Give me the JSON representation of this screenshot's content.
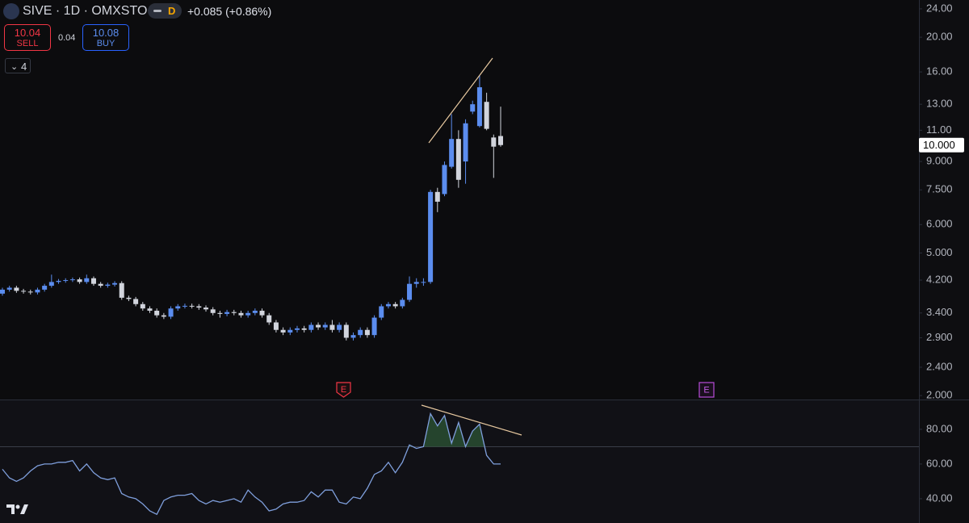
{
  "header": {
    "symbol": "SIVE · 1D · OMXSTO",
    "interval_badge": "D",
    "change": "+0.085 (+0.86%)",
    "sell": {
      "price": "10.04",
      "label": "SELL"
    },
    "spread": "0.04",
    "buy": {
      "price": "10.08",
      "label": "BUY"
    },
    "indicators_count": "4",
    "events": [
      "E",
      "E"
    ]
  },
  "chart_data": [
    {
      "type": "candlestick",
      "title": "SIVE · 1D · OMXSTO",
      "log_scale": true,
      "up_color": "#5b8def",
      "down_color": "#d1d4dc",
      "ylim": [
        1.95,
        25.4
      ],
      "yticks": [
        {
          "value": 24,
          "label": "24.00"
        },
        {
          "value": 20,
          "label": "20.00"
        },
        {
          "value": 16,
          "label": "16.00"
        },
        {
          "value": 13,
          "label": "13.00"
        },
        {
          "value": 11,
          "label": "11.00"
        },
        {
          "value": 9,
          "label": "9.000"
        },
        {
          "value": 7.5,
          "label": "7.500"
        },
        {
          "value": 6,
          "label": "6.000"
        },
        {
          "value": 5,
          "label": "5.000"
        },
        {
          "value": 4.2,
          "label": "4.200"
        },
        {
          "value": 3.4,
          "label": "3.400"
        },
        {
          "value": 2.9,
          "label": "2.900"
        },
        {
          "value": 2.4,
          "label": "2.400"
        },
        {
          "value": 2,
          "label": "2.000"
        }
      ],
      "current_price": {
        "value": 10,
        "label": "10.000"
      },
      "open": [
        3.85,
        3.95,
        4.0,
        3.92,
        3.9,
        3.88,
        3.95,
        4.05,
        4.15,
        4.18,
        4.2,
        4.22,
        4.15,
        4.25,
        4.1,
        4.05,
        4.08,
        4.12,
        3.75,
        3.72,
        3.6,
        3.5,
        3.45,
        3.35,
        3.32,
        3.5,
        3.55,
        3.56,
        3.55,
        3.52,
        3.48,
        3.4,
        3.38,
        3.42,
        3.4,
        3.35,
        3.4,
        3.45,
        3.35,
        3.2,
        3.05,
        3.0,
        3.05,
        3.08,
        3.05,
        3.15,
        3.1,
        3.15,
        3.05,
        3.15,
        2.9,
        2.95,
        3.05,
        2.95,
        3.3,
        3.55,
        3.6,
        3.55,
        3.7,
        4.1,
        4.15,
        4.15,
        7.4,
        7.3,
        8.7,
        10.4,
        9.0,
        12.4,
        11.3,
        13.2,
        10.5,
        10.6
      ],
      "high": [
        4.0,
        4.05,
        4.05,
        3.97,
        3.95,
        4.0,
        4.1,
        4.35,
        4.23,
        4.25,
        4.27,
        4.27,
        4.35,
        4.3,
        4.15,
        4.13,
        4.17,
        4.17,
        3.8,
        3.77,
        3.65,
        3.55,
        3.5,
        3.4,
        3.55,
        3.6,
        3.61,
        3.61,
        3.6,
        3.57,
        3.53,
        3.45,
        3.47,
        3.47,
        3.45,
        3.45,
        3.5,
        3.5,
        3.4,
        3.25,
        3.1,
        3.1,
        3.13,
        3.13,
        3.2,
        3.2,
        3.2,
        3.25,
        3.2,
        3.2,
        3.0,
        3.1,
        3.1,
        3.35,
        3.6,
        3.65,
        3.65,
        3.75,
        4.3,
        4.25,
        4.25,
        7.5,
        7.6,
        9.0,
        12.2,
        11.0,
        11.8,
        13.3,
        15.6,
        14.0,
        10.7,
        12.8
      ],
      "low": [
        3.8,
        3.9,
        3.87,
        3.85,
        3.83,
        3.83,
        3.9,
        4.0,
        4.1,
        4.13,
        4.15,
        4.1,
        4.1,
        4.05,
        4.0,
        4.0,
        4.03,
        3.7,
        3.67,
        3.55,
        3.45,
        3.4,
        3.3,
        3.27,
        3.27,
        3.45,
        3.5,
        3.5,
        3.47,
        3.43,
        3.35,
        3.3,
        3.33,
        3.35,
        3.3,
        3.3,
        3.35,
        3.3,
        3.15,
        3.0,
        2.95,
        2.95,
        3.0,
        3.0,
        3.0,
        3.05,
        3.05,
        3.0,
        3.0,
        2.85,
        2.85,
        2.9,
        2.9,
        2.9,
        3.25,
        3.5,
        3.5,
        3.5,
        3.65,
        4.0,
        4.05,
        4.1,
        6.5,
        7.2,
        8.6,
        7.6,
        7.8,
        12.2,
        11.2,
        11.0,
        8.1,
        9.9
      ],
      "close": [
        3.95,
        4.0,
        3.92,
        3.9,
        3.88,
        3.95,
        4.05,
        4.15,
        4.18,
        4.2,
        4.22,
        4.15,
        4.25,
        4.1,
        4.05,
        4.08,
        4.12,
        3.75,
        3.72,
        3.6,
        3.5,
        3.45,
        3.35,
        3.32,
        3.5,
        3.55,
        3.56,
        3.55,
        3.52,
        3.48,
        3.4,
        3.38,
        3.42,
        3.4,
        3.35,
        3.4,
        3.45,
        3.35,
        3.2,
        3.05,
        3.0,
        3.05,
        3.08,
        3.05,
        3.15,
        3.1,
        3.15,
        3.05,
        3.15,
        2.9,
        2.95,
        3.05,
        2.95,
        3.3,
        3.55,
        3.6,
        3.55,
        3.7,
        4.1,
        4.15,
        4.15,
        7.4,
        6.95,
        8.8,
        10.4,
        8.0,
        11.5,
        13.0,
        14.5,
        11.1,
        9.9,
        10.0
      ]
    },
    {
      "type": "line",
      "color": "#7f9fdc",
      "fill_color": "#2e5a38",
      "overbought": 70,
      "ylim": [
        26,
        97.2
      ],
      "yticks": [
        {
          "value": 80,
          "label": "80.00"
        },
        {
          "value": 60,
          "label": "60.00"
        },
        {
          "value": 40,
          "label": "40.00"
        }
      ],
      "values": [
        57,
        52,
        50,
        52,
        56,
        59,
        60,
        60,
        61,
        61,
        62,
        56,
        60,
        55,
        52,
        51,
        52,
        43,
        41,
        40,
        37,
        33,
        31,
        39,
        41,
        42,
        42,
        43,
        39,
        37,
        39,
        38,
        39,
        40,
        38,
        45,
        41,
        38,
        33,
        34,
        37,
        38,
        38,
        39,
        44,
        41,
        45,
        45,
        38,
        37,
        41,
        40,
        46,
        54,
        56,
        61,
        55,
        61,
        71,
        69,
        70,
        89,
        82,
        88,
        72,
        84,
        70,
        79,
        83,
        65,
        60,
        60
      ]
    }
  ]
}
